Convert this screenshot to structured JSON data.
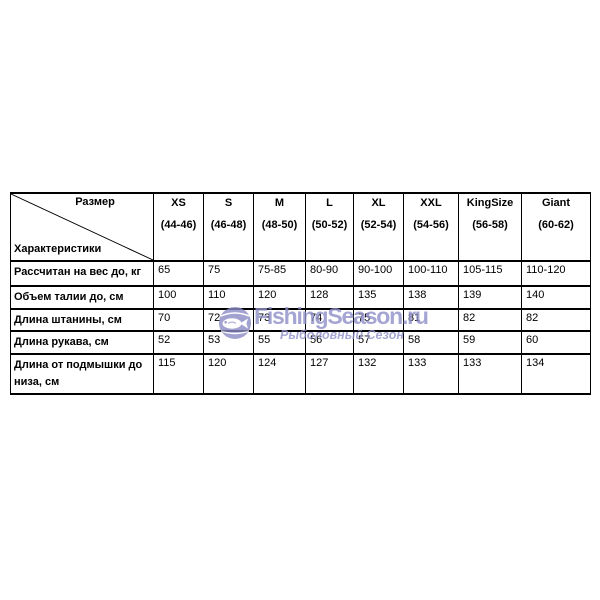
{
  "watermark": {
    "brand": "FishingSeason.ru",
    "tagline": "Рыболовный Сезон",
    "color": "#8f8fc9",
    "icon": "globe-fish-icon"
  },
  "chart_data": {
    "type": "table",
    "title": "",
    "corner": {
      "top": "Размер",
      "bottom": "Характеристики"
    },
    "columns": [
      {
        "size": "XS",
        "range": "(44-46)"
      },
      {
        "size": "S",
        "range": "(46-48)"
      },
      {
        "size": "M",
        "range": "(48-50)"
      },
      {
        "size": "L",
        "range": "(50-52)"
      },
      {
        "size": "XL",
        "range": "(52-54)"
      },
      {
        "size": "XXL",
        "range": "(54-56)"
      },
      {
        "size": "KingSize",
        "range": "(56-58)"
      },
      {
        "size": "Giant",
        "range": "(60-62)"
      }
    ],
    "rows": [
      {
        "label": "Рассчитан на вес до, кг",
        "values": [
          "65",
          "75",
          "75-85",
          "80-90",
          "90-100",
          "100-110",
          "105-115",
          "110-120"
        ]
      },
      {
        "label": "Объем талии до, см",
        "values": [
          "100",
          "110",
          "120",
          "128",
          "135",
          "138",
          "139",
          "140"
        ]
      },
      {
        "label": "Длина штанины, см",
        "values": [
          "70",
          "72",
          "73",
          "74",
          "75",
          "81",
          "82",
          "82"
        ]
      },
      {
        "label": "Длина рукава, см",
        "values": [
          "52",
          "53",
          "55",
          "56",
          "57",
          "58",
          "59",
          "60"
        ]
      },
      {
        "label": "Длина от подмышки до низа, см",
        "values": [
          "115",
          "120",
          "124",
          "127",
          "132",
          "133",
          "133",
          "134"
        ]
      }
    ]
  }
}
